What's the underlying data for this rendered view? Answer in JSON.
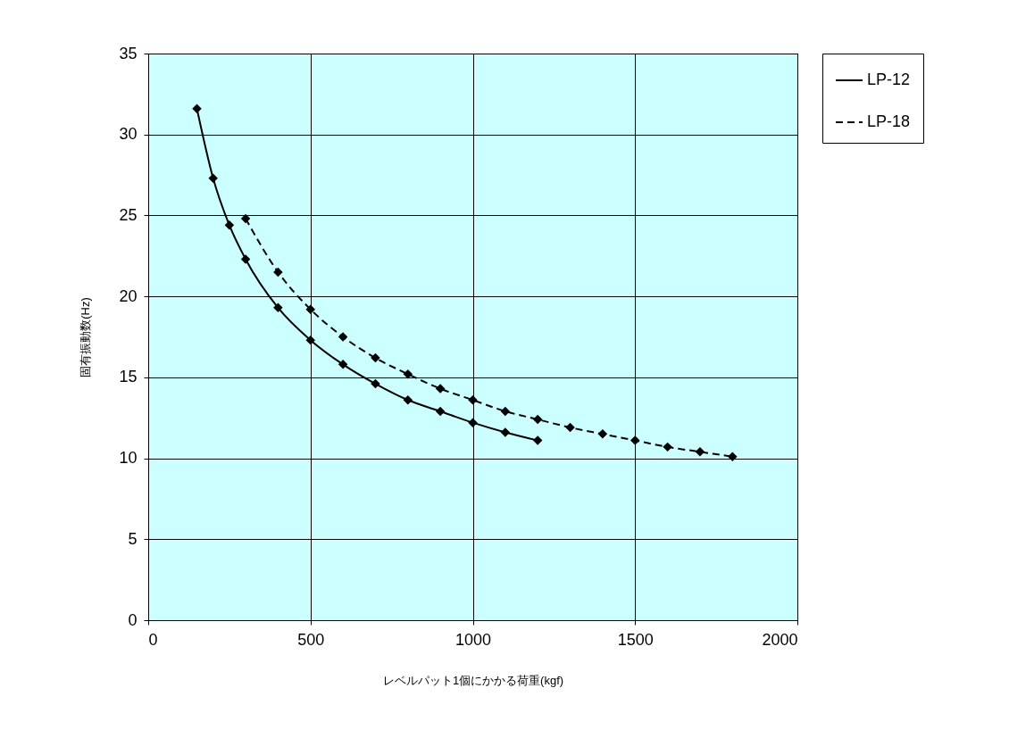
{
  "chart_data": {
    "type": "line",
    "xlabel": "レベルパット1個にかかる荷重(kgf)",
    "ylabel": "固有振動数(Hz)",
    "xlim": [
      0,
      2000
    ],
    "xticks": [
      0,
      500,
      1000,
      1500,
      2000
    ],
    "ylim": [
      0,
      35
    ],
    "yticks": [
      0,
      5,
      10,
      15,
      20,
      25,
      30,
      35
    ],
    "grid": true,
    "legend": "right",
    "marker": "diamond",
    "series": [
      {
        "name": "LP-12",
        "color": "#000000",
        "line_style": "solid",
        "x": [
          150,
          200,
          250,
          300,
          400,
          500,
          600,
          700,
          800,
          900,
          1000,
          1100,
          1200
        ],
        "values": [
          31.6,
          27.3,
          24.4,
          22.3,
          19.3,
          17.3,
          15.8,
          14.6,
          13.6,
          12.9,
          12.2,
          11.6,
          11.1
        ]
      },
      {
        "name": "LP-18",
        "color": "#000000",
        "line_style": "dashed",
        "x": [
          300,
          400,
          500,
          600,
          700,
          800,
          900,
          1000,
          1100,
          1200,
          1300,
          1400,
          1500,
          1600,
          1700,
          1800
        ],
        "values": [
          24.8,
          21.5,
          19.2,
          17.5,
          16.2,
          15.2,
          14.3,
          13.6,
          12.9,
          12.4,
          11.9,
          11.5,
          11.1,
          10.7,
          10.4,
          10.1
        ]
      }
    ]
  }
}
